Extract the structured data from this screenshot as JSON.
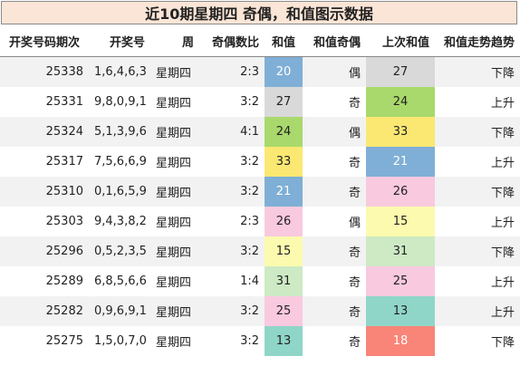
{
  "title": "近10期星期四 奇偶，和值图示数据",
  "headers": [
    "开奖号码期次",
    "开奖号",
    "周",
    "奇偶数比",
    "和值",
    "和值奇偶",
    "上次和值",
    "和值走势趋势"
  ],
  "rows": [
    {
      "issue": "25338",
      "numbers": "1,6,4,6,3",
      "weekday": "星期四",
      "ratio": "2:3",
      "sum": "20",
      "parity": "偶",
      "prev_sum": "27",
      "trend": "下降",
      "sum_color": "#7fafd6",
      "sum_text": "#ffffff",
      "prev_color": "#d9d9d9",
      "prev_text": "#222222"
    },
    {
      "issue": "25331",
      "numbers": "9,8,0,9,1",
      "weekday": "星期四",
      "ratio": "3:2",
      "sum": "27",
      "parity": "奇",
      "prev_sum": "24",
      "trend": "上升",
      "sum_color": "#d9d9d9",
      "sum_text": "#222222",
      "prev_color": "#a9d96c",
      "prev_text": "#222222"
    },
    {
      "issue": "25324",
      "numbers": "5,1,3,9,6",
      "weekday": "星期四",
      "ratio": "4:1",
      "sum": "24",
      "parity": "偶",
      "prev_sum": "33",
      "trend": "下降",
      "sum_color": "#a9d96c",
      "sum_text": "#222222",
      "prev_color": "#fbe872",
      "prev_text": "#222222"
    },
    {
      "issue": "25317",
      "numbers": "7,5,6,6,9",
      "weekday": "星期四",
      "ratio": "3:2",
      "sum": "33",
      "parity": "奇",
      "prev_sum": "21",
      "trend": "上升",
      "sum_color": "#fbe872",
      "sum_text": "#222222",
      "prev_color": "#7fafd6",
      "prev_text": "#ffffff"
    },
    {
      "issue": "25310",
      "numbers": "0,1,6,5,9",
      "weekday": "星期四",
      "ratio": "3:2",
      "sum": "21",
      "parity": "奇",
      "prev_sum": "26",
      "trend": "下降",
      "sum_color": "#7fafd6",
      "sum_text": "#ffffff",
      "prev_color": "#f9c9df",
      "prev_text": "#222222"
    },
    {
      "issue": "25303",
      "numbers": "9,4,3,8,2",
      "weekday": "星期四",
      "ratio": "2:3",
      "sum": "26",
      "parity": "偶",
      "prev_sum": "15",
      "trend": "上升",
      "sum_color": "#f9c9df",
      "sum_text": "#222222",
      "prev_color": "#fbfaae",
      "prev_text": "#222222"
    },
    {
      "issue": "25296",
      "numbers": "0,5,2,3,5",
      "weekday": "星期四",
      "ratio": "3:2",
      "sum": "15",
      "parity": "奇",
      "prev_sum": "31",
      "trend": "下降",
      "sum_color": "#fbfaae",
      "sum_text": "#222222",
      "prev_color": "#cdeac4",
      "prev_text": "#222222"
    },
    {
      "issue": "25289",
      "numbers": "6,8,5,6,6",
      "weekday": "星期四",
      "ratio": "1:4",
      "sum": "31",
      "parity": "奇",
      "prev_sum": "25",
      "trend": "上升",
      "sum_color": "#cdeac4",
      "sum_text": "#222222",
      "prev_color": "#f9c9df",
      "prev_text": "#222222"
    },
    {
      "issue": "25282",
      "numbers": "0,9,6,9,1",
      "weekday": "星期四",
      "ratio": "3:2",
      "sum": "25",
      "parity": "奇",
      "prev_sum": "13",
      "trend": "上升",
      "sum_color": "#f9c9df",
      "sum_text": "#222222",
      "prev_color": "#8fd6c8",
      "prev_text": "#222222"
    },
    {
      "issue": "25275",
      "numbers": "1,5,0,7,0",
      "weekday": "星期四",
      "ratio": "3:2",
      "sum": "13",
      "parity": "奇",
      "prev_sum": "18",
      "trend": "下降",
      "sum_color": "#8fd6c8",
      "sum_text": "#222222",
      "prev_color": "#f98478",
      "prev_text": "#ffffff"
    }
  ]
}
